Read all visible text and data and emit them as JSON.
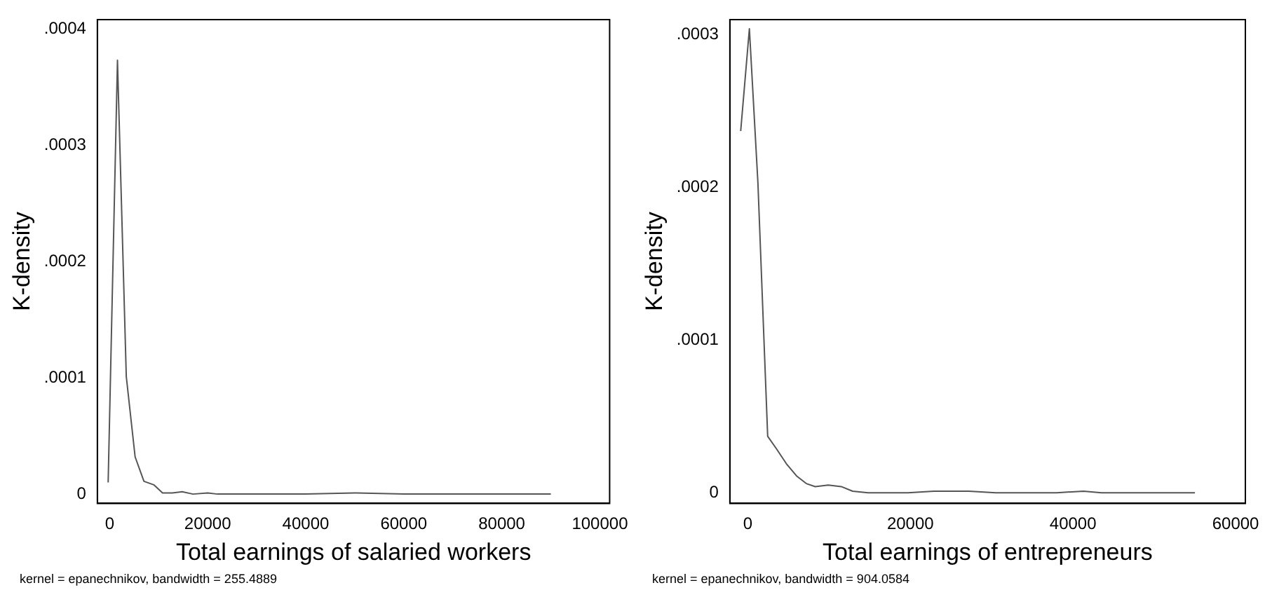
{
  "chart_data": [
    {
      "type": "line",
      "xlabel": "Total earnings of salaried workers",
      "ylabel": "K-density",
      "annotations": [
        "kernel = epanechnikov, bandwidth = 255.4889"
      ],
      "grid": false,
      "legend": false,
      "marker": "none",
      "xlim": [
        -2500,
        102000
      ],
      "xticks": [
        0,
        20000,
        40000,
        60000,
        80000,
        100000
      ],
      "ylim": [
        -8e-06,
        0.000408
      ],
      "yticks": [
        0,
        {
          "value": 0.0001,
          "label": ".0001"
        },
        {
          "value": 0.0002,
          "label": ".0002"
        },
        {
          "value": 0.0003,
          "label": ".0003"
        },
        {
          "value": 0.0004,
          "label": ".0004"
        }
      ],
      "series": [
        {
          "color": "#555555",
          "x": [
            -300,
            1600,
            3400,
            5200,
            7000,
            9000,
            10800,
            12800,
            14800,
            17000,
            20000,
            22000,
            30000,
            40000,
            50000,
            60000,
            70000,
            80000,
            90000
          ],
          "values": [
            1e-05,
            0.000373,
            0.000101,
            3.2e-05,
            1.1e-05,
            8e-06,
            1e-06,
            1e-06,
            2e-06,
            0,
            1e-06,
            0,
            0,
            0,
            1e-06,
            0,
            0,
            0,
            0
          ]
        }
      ]
    },
    {
      "type": "line",
      "xlabel": "Total earnings of entrepreneurs",
      "ylabel": "K-density",
      "annotations": [
        "kernel = epanechnikov, bandwidth = 904.0584"
      ],
      "grid": false,
      "legend": false,
      "marker": "none",
      "xlim": [
        -2200,
        61200
      ],
      "xticks": [
        0,
        20000,
        40000,
        60000
      ],
      "ylim": [
        -7e-06,
        0.00031
      ],
      "yticks": [
        0,
        {
          "value": 0.0001,
          "label": ".0001"
        },
        {
          "value": 0.0002,
          "label": ".0002"
        },
        {
          "value": 0.0003,
          "label": ".0003"
        }
      ],
      "series": [
        {
          "color": "#555555",
          "x": [
            -870,
            200,
            1250,
            2450,
            3500,
            4750,
            6000,
            7200,
            8300,
            9900,
            11500,
            12900,
            14800,
            19700,
            22900,
            27200,
            30500,
            34300,
            38000,
            41300,
            43500,
            55000
          ],
          "values": [
            0.000237,
            0.000304,
            0.000203,
            3.7e-05,
            2.9e-05,
            1.9e-05,
            1.1e-05,
            6e-06,
            4e-06,
            5e-06,
            4e-06,
            1e-06,
            0,
            0,
            1e-06,
            1e-06,
            0,
            0,
            0,
            1e-06,
            0,
            0
          ]
        }
      ]
    }
  ]
}
